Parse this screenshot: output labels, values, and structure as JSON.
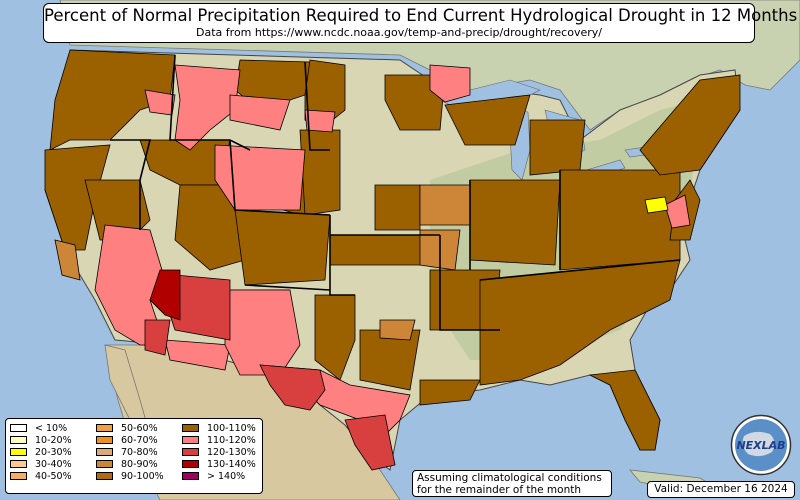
{
  "title": "Percent of Normal Precipitation Required to End Current Hydrological Drought in 12 Months",
  "subtitle": "Data from https://www.ncdc.noaa.gov/temp-and-precip/drought/recovery/",
  "legend": [
    {
      "label": "< 10%",
      "color": "#ffffff"
    },
    {
      "label": "10-20%",
      "color": "#ffffc0"
    },
    {
      "label": "20-30%",
      "color": "#ffff00"
    },
    {
      "label": "30-40%",
      "color": "#ffc88c"
    },
    {
      "label": "40-50%",
      "color": "#f4b060"
    },
    {
      "label": "50-60%",
      "color": "#f0a040"
    },
    {
      "label": "60-70%",
      "color": "#f09020"
    },
    {
      "label": "70-80%",
      "color": "#dcaa78"
    },
    {
      "label": "80-90%",
      "color": "#cd8538"
    },
    {
      "label": "90-100%",
      "color": "#b06a10"
    },
    {
      "label": "100-110%",
      "color": "#9b6000"
    },
    {
      "label": "110-120%",
      "color": "#ff8080"
    },
    {
      "label": "120-130%",
      "color": "#d84040"
    },
    {
      "label": "130-140%",
      "color": "#b00000"
    },
    {
      "label": "> 140%",
      "color": "#a00060"
    }
  ],
  "note": [
    "Assuming climatological conditions",
    "for the remainder of the month"
  ],
  "valid": "Valid: December 16 2024",
  "logo_text": "NEXLAB",
  "colors": {
    "water": "#9fc0e0",
    "land": "#d9d6b4",
    "forest": "#b8c89a",
    "mexico": "#d8c8a0",
    "canada": "#c8d2b0",
    "drought_main": "#9b6000",
    "drought_light": "#cd8538",
    "above_110": "#ff8080",
    "above_120": "#d84040",
    "above_130": "#b00000",
    "yellow": "#ffff00"
  }
}
